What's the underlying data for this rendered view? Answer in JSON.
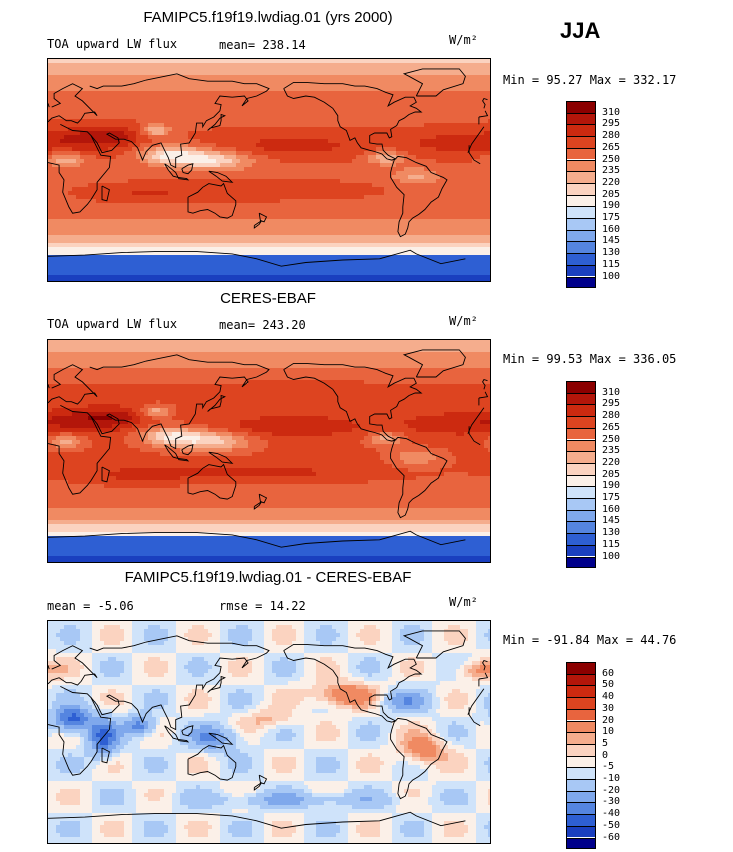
{
  "season": "JJA",
  "panels": [
    {
      "title": "FAMIPC5.f19f19.lwdiag.01 (yrs 2000)",
      "left_label": "TOA upward LW flux",
      "mid_label": "mean= 238.14",
      "units": "W/m²",
      "minmax": "Min =  95.27 Max = 332.17",
      "type": "abs"
    },
    {
      "title": "CERES-EBAF",
      "left_label": "TOA upward LW flux",
      "mid_label": "mean= 243.20",
      "units": "W/m²",
      "minmax": "Min =  99.53 Max = 336.05",
      "type": "abs"
    },
    {
      "title": "FAMIPC5.f19f19.lwdiag.01 - CERES-EBAF",
      "left_label": "mean =  -5.06",
      "mid_label": "rmse =  14.22",
      "units": "W/m²",
      "minmax": "Min = -91.84 Max =  44.76",
      "type": "diff"
    }
  ],
  "chart_data": [
    {
      "type": "heatmap",
      "title": "FAMIPC5.f19f19.lwdiag.01 (yrs 2000)",
      "variable": "TOA upward LW flux",
      "season": "JJA",
      "units": "W/m²",
      "mean": 238.14,
      "min": 95.27,
      "max": 332.17,
      "colorbar_levels": [
        310,
        295,
        280,
        265,
        250,
        235,
        220,
        205,
        190,
        175,
        160,
        145,
        130,
        115,
        100
      ],
      "colors": [
        "#8b0000",
        "#b3160a",
        "#cc2a10",
        "#dd4420",
        "#e8643e",
        "#f08a62",
        "#f5ad8d",
        "#fbd3c0",
        "#fbf0e8",
        "#cfe3fa",
        "#a8c8f5",
        "#7fa8ec",
        "#5585e0",
        "#2e5fd3",
        "#1a3fbf",
        "#00008b"
      ]
    },
    {
      "type": "heatmap",
      "title": "CERES-EBAF",
      "variable": "TOA upward LW flux",
      "season": "JJA",
      "units": "W/m²",
      "mean": 243.2,
      "min": 99.53,
      "max": 336.05,
      "colorbar_levels": [
        310,
        295,
        280,
        265,
        250,
        235,
        220,
        205,
        190,
        175,
        160,
        145,
        130,
        115,
        100
      ],
      "colors": [
        "#8b0000",
        "#b3160a",
        "#cc2a10",
        "#dd4420",
        "#e8643e",
        "#f08a62",
        "#f5ad8d",
        "#fbd3c0",
        "#fbf0e8",
        "#cfe3fa",
        "#a8c8f5",
        "#7fa8ec",
        "#5585e0",
        "#2e5fd3",
        "#1a3fbf",
        "#00008b"
      ]
    },
    {
      "type": "heatmap",
      "title": "FAMIPC5.f19f19.lwdiag.01 - CERES-EBAF",
      "season": "JJA",
      "units": "W/m²",
      "mean": -5.06,
      "rmse": 14.22,
      "min": -91.84,
      "max": 44.76,
      "colorbar_levels": [
        60,
        50,
        40,
        30,
        20,
        10,
        5,
        0,
        -5,
        -10,
        -20,
        -30,
        -40,
        -50,
        -60
      ],
      "colors": [
        "#8b0000",
        "#b3160a",
        "#cc2a10",
        "#dd4420",
        "#e8643e",
        "#f08a62",
        "#f5ad8d",
        "#fbd3c0",
        "#fbf0e8",
        "#cfe3fa",
        "#a8c8f5",
        "#7fa8ec",
        "#5585e0",
        "#2e5fd3",
        "#1a3fbf",
        "#00008b"
      ]
    }
  ]
}
